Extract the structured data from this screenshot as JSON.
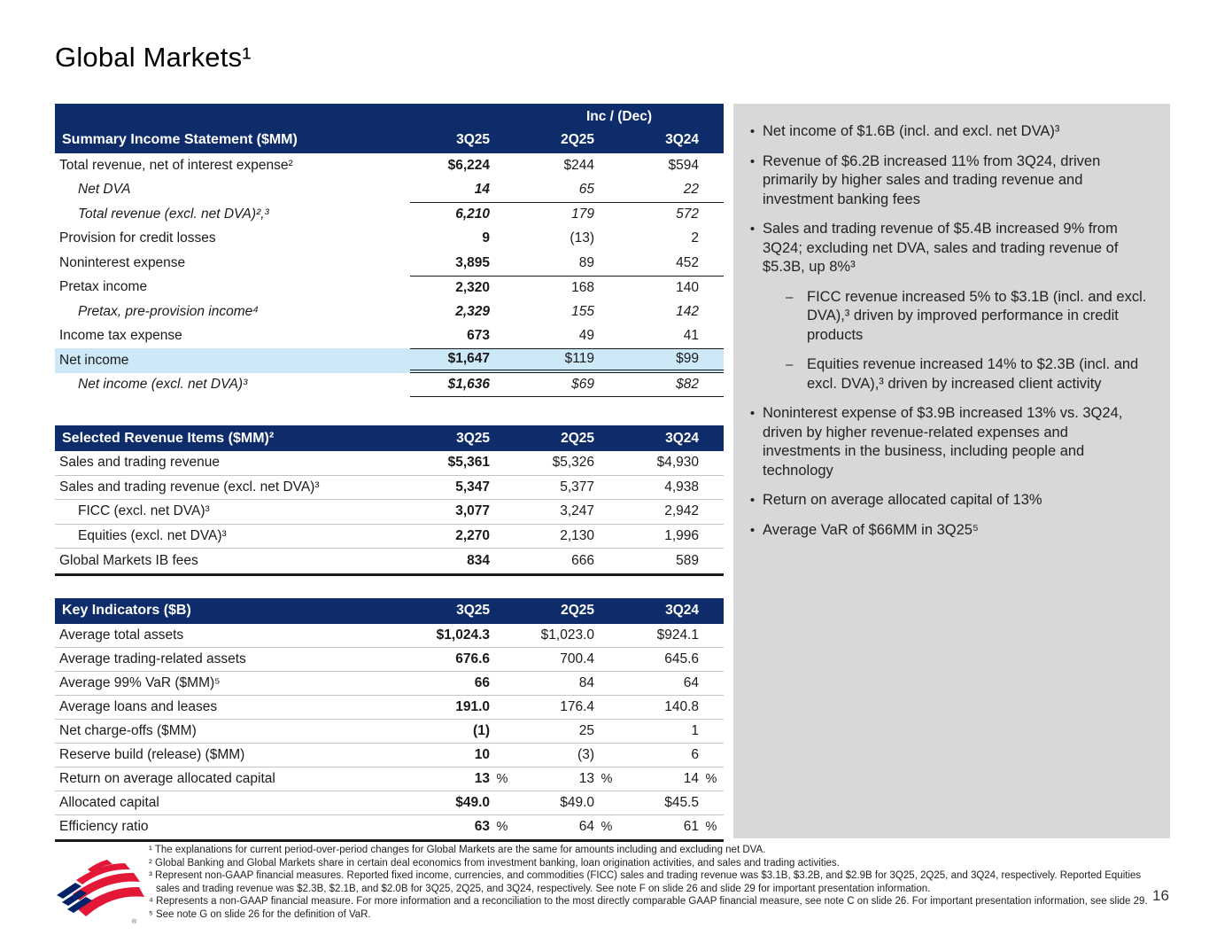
{
  "slide": {
    "title": "Global Markets¹",
    "page_number": "16"
  },
  "colors": {
    "header_navy": "#0e2c6a",
    "net_income_highlight": "#cde8f6",
    "panel_gray": "#d8d8d8",
    "row_separator": "#c4c4c4",
    "logo_red": "#e31837",
    "logo_blue": "#012169"
  },
  "tables": [
    {
      "id": "summary-income-statement",
      "title": "Summary Income Statement ($MM)",
      "group_header": "Inc / (Dec)",
      "columns": [
        "3Q25",
        "2Q25",
        "3Q24"
      ],
      "separators": false,
      "rows": [
        {
          "label": "Total revenue, net of interest expense²",
          "values": [
            "$6,224",
            "$244",
            "$594"
          ]
        },
        {
          "label": "Net DVA",
          "values": [
            "14",
            "65",
            "22"
          ],
          "italic": true,
          "indent": true
        },
        {
          "label": "Total revenue (excl. net DVA)²,³",
          "values": [
            "6,210",
            "179",
            "572"
          ],
          "italic": true,
          "indent": true,
          "rule_top": true
        },
        {
          "label": "Provision for credit losses",
          "values": [
            "9",
            "(13)",
            "2"
          ]
        },
        {
          "label": "Noninterest expense",
          "values": [
            "3,895",
            "89",
            "452"
          ]
        },
        {
          "label": "Pretax income",
          "values": [
            "2,320",
            "168",
            "140"
          ],
          "rule_top": true
        },
        {
          "label": "Pretax, pre-provision income⁴",
          "values": [
            "2,329",
            "155",
            "142"
          ],
          "italic": true,
          "indent": true
        },
        {
          "label": "Income tax expense",
          "values": [
            "673",
            "49",
            "41"
          ]
        },
        {
          "label": "Net income",
          "values": [
            "$1,647",
            "$119",
            "$99"
          ],
          "highlight": true,
          "rule_top": true,
          "rule_bottom": "double"
        },
        {
          "label": "Net income (excl. net DVA)³",
          "values": [
            "$1,636",
            "$69",
            "$82"
          ],
          "italic": true,
          "indent": true,
          "rule_bottom": "single"
        }
      ]
    },
    {
      "id": "selected-revenue-items",
      "title": "Selected Revenue Items ($MM)²",
      "columns": [
        "3Q25",
        "2Q25",
        "3Q24"
      ],
      "separators": true,
      "thick_bottom": true,
      "rows": [
        {
          "label": "Sales and trading revenue",
          "values": [
            "$5,361",
            "$5,326",
            "$4,930"
          ]
        },
        {
          "label": "Sales and trading revenue (excl. net DVA)³",
          "values": [
            "5,347",
            "5,377",
            "4,938"
          ]
        },
        {
          "label": "FICC (excl. net DVA)³",
          "values": [
            "3,077",
            "3,247",
            "2,942"
          ],
          "indent": true
        },
        {
          "label": "Equities (excl. net DVA)³",
          "values": [
            "2,270",
            "2,130",
            "1,996"
          ],
          "indent": true
        },
        {
          "label": "Global Markets IB fees",
          "values": [
            "834",
            "666",
            "589"
          ]
        }
      ]
    },
    {
      "id": "key-indicators",
      "title": "Key Indicators ($B)",
      "columns": [
        "3Q25",
        "2Q25",
        "3Q24"
      ],
      "separators": true,
      "thick_bottom": true,
      "rows": [
        {
          "label": "Average total assets",
          "values": [
            "$1,024.3",
            "$1,023.0",
            "$924.1"
          ]
        },
        {
          "label": "Average trading-related assets",
          "values": [
            "676.6",
            "700.4",
            "645.6"
          ]
        },
        {
          "label": "Average 99% VaR ($MM)⁵",
          "values": [
            "66",
            "84",
            "64"
          ]
        },
        {
          "label": "Average loans and leases",
          "values": [
            "191.0",
            "176.4",
            "140.8"
          ]
        },
        {
          "label": "Net charge-offs ($MM)",
          "values": [
            "(1)",
            "25",
            "1"
          ]
        },
        {
          "label": "Reserve build (release) ($MM)",
          "values": [
            "10",
            "(3)",
            "6"
          ]
        },
        {
          "label": "Return on average allocated capital",
          "values": [
            "13",
            "13",
            "14"
          ],
          "pct": true
        },
        {
          "label": "Allocated capital",
          "values": [
            "$49.0",
            "$49.0",
            "$45.5"
          ]
        },
        {
          "label": "Efficiency ratio",
          "values": [
            "63",
            "64",
            "61"
          ],
          "pct": true
        }
      ]
    }
  ],
  "commentary": {
    "bullets": [
      {
        "level": 0,
        "text": "Net income of $1.6B (incl. and excl. net DVA)³"
      },
      {
        "level": 0,
        "text": "Revenue of $6.2B increased 11% from 3Q24, driven primarily by higher sales and trading revenue and investment banking fees"
      },
      {
        "level": 0,
        "text": "Sales and trading revenue of $5.4B increased 9% from 3Q24; excluding net DVA, sales and trading revenue of $5.3B, up 8%³"
      },
      {
        "level": 1,
        "text": "FICC revenue increased 5% to $3.1B (incl. and excl. DVA),³ driven by improved performance in credit products"
      },
      {
        "level": 1,
        "text": "Equities revenue increased 14% to $2.3B (incl. and excl. DVA),³ driven by increased client activity"
      },
      {
        "level": 0,
        "text": "Noninterest expense of $3.9B increased 13% vs. 3Q24, driven by higher revenue-related expenses and investments in the business, including people and technology"
      },
      {
        "level": 0,
        "text": "Return on average allocated capital of 13%"
      },
      {
        "level": 0,
        "text": "Average VaR of $66MM in 3Q25⁵"
      }
    ]
  },
  "footnotes": [
    "¹ The explanations for current period-over-period changes for Global Markets are the same for amounts including and excluding net DVA.",
    "² Global Banking and Global Markets share in certain deal economics from investment banking, loan origination activities, and sales and trading activities.",
    "³ Represent non-GAAP financial measures. Reported fixed income, currencies, and commodities (FICC) sales and trading revenue was $3.1B, $3.2B, and $2.9B for 3Q25, 2Q25, and 3Q24, respectively. Reported Equities sales and trading revenue was $2.3B, $2.1B, and $2.0B for 3Q25, 2Q25, and 3Q24, respectively. See note F on slide 26 and slide 29 for important presentation information.",
    "⁴ Represents a non-GAAP financial measure. For more information and a reconciliation to the most directly comparable GAAP financial measure, see note C on slide 26. For important presentation information, see slide 29.",
    "⁵ See note G on slide 26 for the definition of VaR."
  ]
}
